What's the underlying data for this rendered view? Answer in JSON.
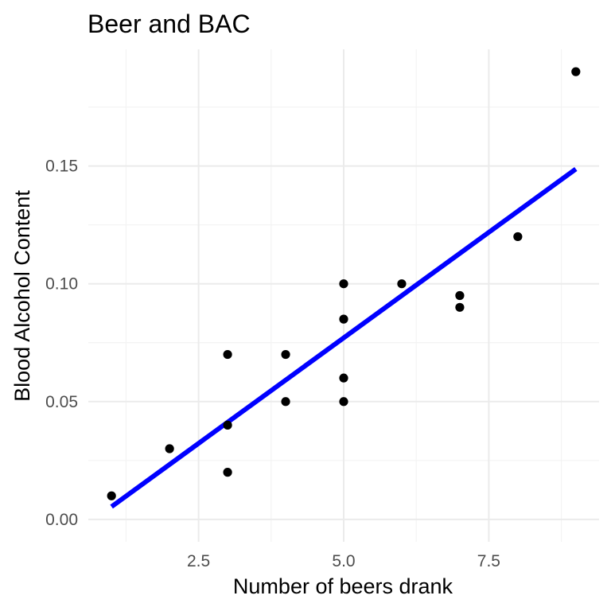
{
  "chart_data": {
    "type": "scatter",
    "title": "Beer and BAC",
    "xlabel": "Number of beers drank",
    "ylabel": "Blood Alcohol Content",
    "xlim": [
      0.6,
      9.4
    ],
    "ylim": [
      -0.0095,
      0.1995
    ],
    "grid": true,
    "x_ticks": [
      2.5,
      5.0,
      7.5
    ],
    "x_tick_labels": [
      "2.5",
      "5.0",
      "7.5"
    ],
    "x_minor": [
      1.25,
      3.75,
      6.25,
      8.75
    ],
    "y_ticks": [
      0.0,
      0.05,
      0.1,
      0.15
    ],
    "y_tick_labels": [
      "0.00",
      "0.05",
      "0.10",
      "0.15"
    ],
    "y_minor": [
      0.025,
      0.075,
      0.125,
      0.175
    ],
    "points": [
      {
        "x": 1,
        "y": 0.01
      },
      {
        "x": 2,
        "y": 0.03
      },
      {
        "x": 3,
        "y": 0.02
      },
      {
        "x": 3,
        "y": 0.04
      },
      {
        "x": 3,
        "y": 0.07
      },
      {
        "x": 4,
        "y": 0.05
      },
      {
        "x": 4,
        "y": 0.07
      },
      {
        "x": 5,
        "y": 0.05
      },
      {
        "x": 5,
        "y": 0.06
      },
      {
        "x": 5,
        "y": 0.085
      },
      {
        "x": 5,
        "y": 0.1
      },
      {
        "x": 6,
        "y": 0.1
      },
      {
        "x": 7,
        "y": 0.09
      },
      {
        "x": 7,
        "y": 0.095
      },
      {
        "x": 8,
        "y": 0.12
      },
      {
        "x": 9,
        "y": 0.19
      }
    ],
    "fit_line": {
      "x": [
        1,
        9
      ],
      "y": [
        0.0054,
        0.1487
      ],
      "color": "#0000ff"
    },
    "point_color": "#000000"
  }
}
